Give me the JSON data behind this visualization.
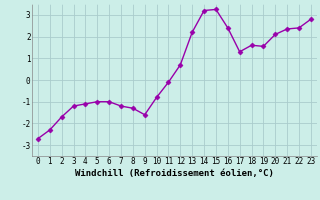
{
  "x": [
    0,
    1,
    2,
    3,
    4,
    5,
    6,
    7,
    8,
    9,
    10,
    11,
    12,
    13,
    14,
    15,
    16,
    17,
    18,
    19,
    20,
    21,
    22,
    23
  ],
  "y": [
    -2.7,
    -2.3,
    -1.7,
    -1.2,
    -1.1,
    -1.0,
    -1.0,
    -1.2,
    -1.3,
    -1.6,
    -0.8,
    -0.1,
    0.7,
    2.2,
    3.2,
    3.25,
    2.4,
    1.3,
    1.6,
    1.55,
    2.1,
    2.35,
    2.4,
    2.8
  ],
  "line_color": "#9900aa",
  "marker": "D",
  "marker_size": 2.5,
  "linewidth": 1.0,
  "bg_color": "#cceee8",
  "grid_color": "#aacccc",
  "xlabel": "Windchill (Refroidissement éolien,°C)",
  "xlim": [
    -0.5,
    23.5
  ],
  "ylim": [
    -3.5,
    3.5
  ],
  "yticks": [
    -3,
    -2,
    -1,
    0,
    1,
    2,
    3
  ],
  "xticks": [
    0,
    1,
    2,
    3,
    4,
    5,
    6,
    7,
    8,
    9,
    10,
    11,
    12,
    13,
    14,
    15,
    16,
    17,
    18,
    19,
    20,
    21,
    22,
    23
  ],
  "tick_fontsize": 5.5,
  "xlabel_fontsize": 6.5
}
